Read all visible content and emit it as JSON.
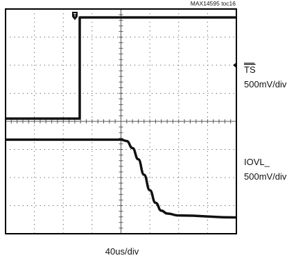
{
  "chart_data": {
    "type": "line",
    "figure_id": "MAX14595 toc16",
    "x_label": "40us/div",
    "divisions": {
      "x": 8,
      "y": 8
    },
    "series": [
      {
        "name": "TS",
        "scale": "500mV/div",
        "points": [
          [
            0,
            4.1
          ],
          [
            2.57,
            4.1
          ],
          [
            2.57,
            7.7
          ],
          [
            8,
            7.7
          ]
        ]
      },
      {
        "name": "IOVL_",
        "scale": "500mV/div",
        "points": [
          [
            0,
            3.35
          ],
          [
            4.0,
            3.35
          ],
          [
            4.2,
            3.3
          ],
          [
            4.4,
            3.05
          ],
          [
            4.6,
            2.65
          ],
          [
            4.8,
            2.1
          ],
          [
            5.0,
            1.55
          ],
          [
            5.2,
            1.1
          ],
          [
            5.4,
            0.82
          ],
          [
            5.6,
            0.72
          ],
          [
            6.0,
            0.65
          ],
          [
            8,
            0.58
          ]
        ]
      }
    ],
    "trigger_marker": "T",
    "colors": {
      "trace": "#111111",
      "grid": "#555555",
      "frame": "#000000"
    }
  }
}
